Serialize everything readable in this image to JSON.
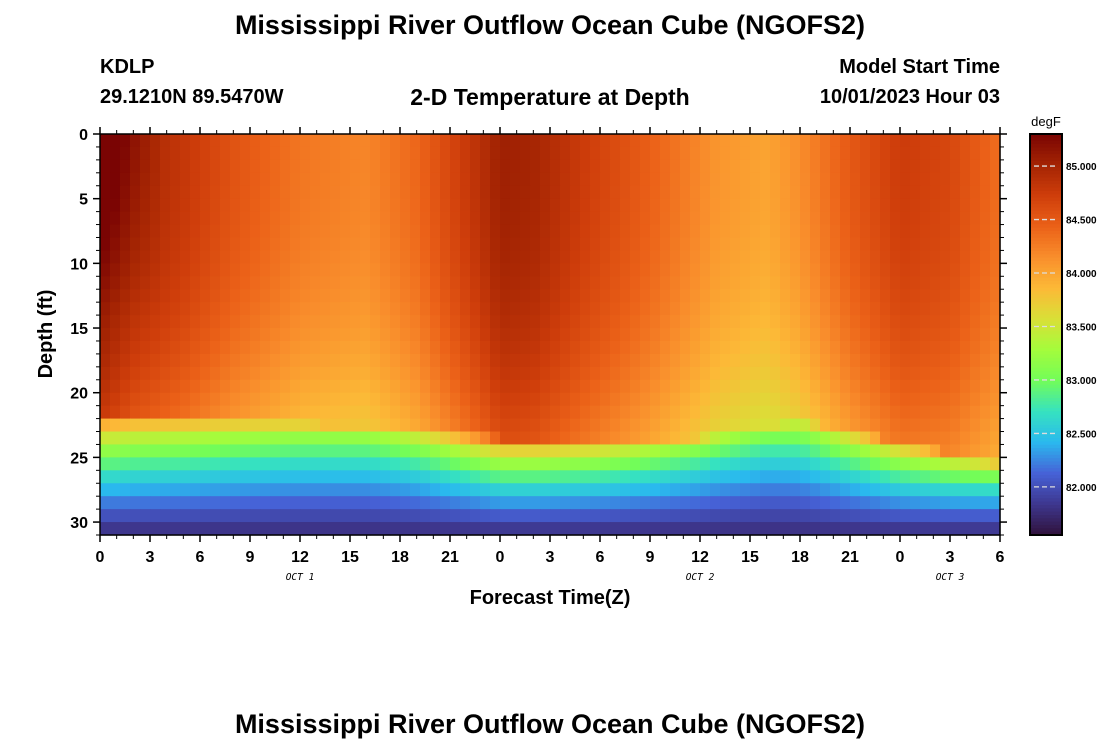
{
  "page": {
    "title": "Mississippi River Outflow Ocean Cube (NGOFS2)",
    "station_id": "KDLP",
    "station_coords": "29.1210N  89.5470W",
    "plot_subtitle": "2-D Temperature at Depth",
    "model_start_label": "Model Start Time",
    "model_start_value": "10/01/2023 Hour 03",
    "second_title": "Mississippi River Outflow Ocean Cube (NGOFS2)"
  },
  "chart_data": {
    "type": "heatmap",
    "title": "2-D Temperature at Depth",
    "xlabel": "Forecast Time(Z)",
    "ylabel": "Depth (ft)",
    "x_ticks": [
      "0",
      "3",
      "6",
      "9",
      "12",
      "15",
      "18",
      "21",
      "0",
      "3",
      "6",
      "9",
      "12",
      "15",
      "18",
      "21",
      "0",
      "3",
      "6"
    ],
    "x_range_hours": [
      0,
      54
    ],
    "date_labels": [
      {
        "label": "OCT 1",
        "hour": 12
      },
      {
        "label": "OCT 2",
        "hour": 36
      },
      {
        "label": "OCT 3",
        "hour": 51
      }
    ],
    "y_ticks": [
      0,
      5,
      10,
      15,
      20,
      25,
      30
    ],
    "ylim": [
      0,
      31
    ],
    "y_inverted": true,
    "colorbar": {
      "unit": "degF",
      "range": [
        81.55,
        85.3
      ],
      "tick_labels": [
        "85.000",
        "84.500",
        "84.000",
        "83.500",
        "83.000",
        "82.500",
        "82.000"
      ],
      "tick_values": [
        85.0,
        84.5,
        84.0,
        83.5,
        83.0,
        82.5,
        82.0
      ],
      "colors": [
        "#30123b",
        "#3e378f",
        "#4662d7",
        "#2ab9ee",
        "#36e2c0",
        "#72fd59",
        "#a4fc3c",
        "#d9e037",
        "#fcb937",
        "#f98e2c",
        "#eb6118",
        "#cf3e0b",
        "#a42403",
        "#7a0403"
      ]
    },
    "grid": false,
    "field": {
      "description": "Estimated temperature (degF) vs forecast hour and depth",
      "top_layer_profile": [
        {
          "hour": 0,
          "value": 85.25
        },
        {
          "hour": 2,
          "value": 85.0
        },
        {
          "hour": 5,
          "value": 84.8
        },
        {
          "hour": 8,
          "value": 84.55
        },
        {
          "hour": 12,
          "value": 84.3
        },
        {
          "hour": 16,
          "value": 84.2
        },
        {
          "hour": 19,
          "value": 84.4
        },
        {
          "hour": 21,
          "value": 84.65
        },
        {
          "hour": 23,
          "value": 84.9
        },
        {
          "hour": 24,
          "value": 85.05
        },
        {
          "hour": 26,
          "value": 85.0
        },
        {
          "hour": 29,
          "value": 84.75
        },
        {
          "hour": 33,
          "value": 84.45
        },
        {
          "hour": 37,
          "value": 84.1
        },
        {
          "hour": 40,
          "value": 84.0
        },
        {
          "hour": 42,
          "value": 84.15
        },
        {
          "hour": 45,
          "value": 84.5
        },
        {
          "hour": 48,
          "value": 84.75
        },
        {
          "hour": 51,
          "value": 84.65
        },
        {
          "hour": 54,
          "value": 84.35
        }
      ],
      "mixed_layer_bottom_ft": [
        {
          "hour": 0,
          "value": 21.5
        },
        {
          "hour": 9,
          "value": 22.2
        },
        {
          "hour": 18,
          "value": 22.8
        },
        {
          "hour": 24,
          "value": 23.5
        },
        {
          "hour": 30,
          "value": 23.8
        },
        {
          "hour": 36,
          "value": 23.5
        },
        {
          "hour": 42,
          "value": 22.2
        },
        {
          "hour": 48,
          "value": 23.8
        },
        {
          "hour": 54,
          "value": 25.5
        }
      ],
      "bottom_value": 81.75
    }
  }
}
